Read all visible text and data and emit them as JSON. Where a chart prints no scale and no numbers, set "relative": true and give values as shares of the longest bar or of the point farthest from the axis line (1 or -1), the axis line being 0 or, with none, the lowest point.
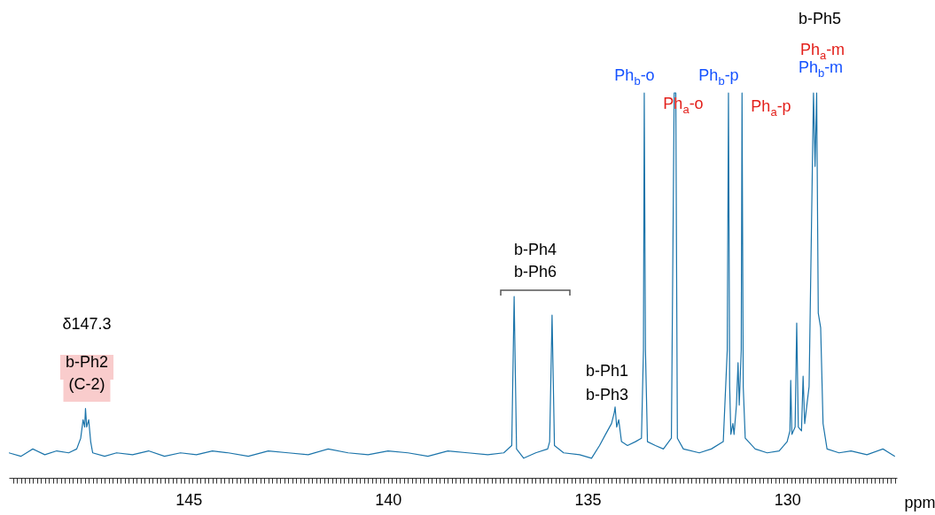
{
  "chart_data": {
    "type": "line",
    "relative": true,
    "xlabel": "ppm",
    "color": "#1b74aa",
    "xlim": [
      149.5,
      127.25
    ],
    "x": [
      149.5,
      149.2,
      148.9,
      148.6,
      148.3,
      148.0,
      147.8,
      147.7,
      147.64,
      147.6,
      147.58,
      147.55,
      147.5,
      147.45,
      147.4,
      147.1,
      146.8,
      146.4,
      146.0,
      145.6,
      145.2,
      144.8,
      144.4,
      144.0,
      143.5,
      143.0,
      142.5,
      142.0,
      141.5,
      141.0,
      140.5,
      140.0,
      139.5,
      139.0,
      138.5,
      138.0,
      137.5,
      137.1,
      136.9,
      136.84,
      136.78,
      136.6,
      136.3,
      136.0,
      135.95,
      135.89,
      135.83,
      135.6,
      135.2,
      134.9,
      134.7,
      134.55,
      134.4,
      134.33,
      134.31,
      134.27,
      134.22,
      134.15,
      134.0,
      133.8,
      133.65,
      133.6,
      133.58,
      133.55,
      133.5,
      133.3,
      133.1,
      132.9,
      132.83,
      132.79,
      132.75,
      132.6,
      132.2,
      131.9,
      131.6,
      131.5,
      131.47,
      131.44,
      131.41,
      131.36,
      131.33,
      131.27,
      131.23,
      131.2,
      131.15,
      131.13,
      131.1,
      131.05,
      130.8,
      130.5,
      130.2,
      130.0,
      129.93,
      129.91,
      129.88,
      129.8,
      129.76,
      129.72,
      129.64,
      129.6,
      129.56,
      129.45,
      129.34,
      129.3,
      129.26,
      129.22,
      129.16,
      129.1,
      129.0,
      128.7,
      128.4,
      128.0,
      127.6,
      127.3
    ],
    "values": [
      0.065,
      0.056,
      0.075,
      0.06,
      0.07,
      0.065,
      0.075,
      0.103,
      0.151,
      0.132,
      0.18,
      0.132,
      0.151,
      0.094,
      0.065,
      0.056,
      0.065,
      0.06,
      0.07,
      0.056,
      0.065,
      0.06,
      0.07,
      0.065,
      0.056,
      0.07,
      0.065,
      0.06,
      0.075,
      0.065,
      0.06,
      0.07,
      0.065,
      0.056,
      0.07,
      0.065,
      0.06,
      0.065,
      0.084,
      0.471,
      0.075,
      0.051,
      0.065,
      0.075,
      0.094,
      0.423,
      0.084,
      0.065,
      0.06,
      0.051,
      0.084,
      0.113,
      0.141,
      0.17,
      0.184,
      0.132,
      0.151,
      0.094,
      0.084,
      0.094,
      0.103,
      0.332,
      1,
      0.332,
      0.094,
      0.084,
      0.075,
      0.103,
      1,
      1,
      0.103,
      0.075,
      0.065,
      0.075,
      0.094,
      0.332,
      1,
      0.237,
      0.113,
      0.141,
      0.113,
      0.189,
      0.299,
      0.189,
      0.332,
      1,
      0.237,
      0.103,
      0.075,
      0.065,
      0.07,
      0.094,
      0.122,
      0.253,
      0.113,
      0.132,
      0.402,
      0.132,
      0.122,
      0.264,
      0.141,
      0.237,
      1,
      0.809,
      1,
      0.428,
      0.39,
      0.141,
      0.075,
      0.065,
      0.07,
      0.06,
      0.075,
      0.056
    ],
    "xticks": [
      {
        "value": 149.4,
        "label": null
      },
      {
        "value": 149.3,
        "label": null
      },
      {
        "value": 149.2,
        "label": null
      },
      {
        "value": 149.1,
        "label": null
      },
      {
        "value": 149.0,
        "label": null
      },
      {
        "value": 148.9,
        "label": null
      },
      {
        "value": 148.8,
        "label": null
      },
      {
        "value": 148.7,
        "label": null
      },
      {
        "value": 148.6,
        "label": null
      },
      {
        "value": 148.5,
        "label": null
      },
      {
        "value": 148.4,
        "label": null
      },
      {
        "value": 148.3,
        "label": null
      },
      {
        "value": 148.2,
        "label": null
      },
      {
        "value": 148.1,
        "label": null
      },
      {
        "value": 148.0,
        "label": null
      },
      {
        "value": 147.9,
        "label": null
      },
      {
        "value": 147.8,
        "label": null
      },
      {
        "value": 147.7,
        "label": null
      },
      {
        "value": 147.6,
        "label": null
      },
      {
        "value": 147.5,
        "label": null
      },
      {
        "value": 147.4,
        "label": null
      },
      {
        "value": 147.3,
        "label": null
      },
      {
        "value": 147.2,
        "label": null
      },
      {
        "value": 147.1,
        "label": null
      },
      {
        "value": 147.0,
        "label": null
      },
      {
        "value": 146.9,
        "label": null
      },
      {
        "value": 146.8,
        "label": null
      },
      {
        "value": 146.7,
        "label": null
      },
      {
        "value": 146.6,
        "label": null
      },
      {
        "value": 146.5,
        "label": null
      },
      {
        "value": 146.4,
        "label": null
      },
      {
        "value": 146.3,
        "label": null
      },
      {
        "value": 146.2,
        "label": null
      },
      {
        "value": 146.1,
        "label": null
      },
      {
        "value": 146.0,
        "label": null
      },
      {
        "value": 145.9,
        "label": null
      },
      {
        "value": 145.8,
        "label": null
      },
      {
        "value": 145.7,
        "label": null
      },
      {
        "value": 145.6,
        "label": null
      },
      {
        "value": 145.5,
        "label": null
      },
      {
        "value": 145.4,
        "label": null
      },
      {
        "value": 145.3,
        "label": null
      },
      {
        "value": 145.2,
        "label": null
      },
      {
        "value": 145.1,
        "label": null
      },
      145,
      {
        "value": 144.9,
        "label": null
      },
      {
        "value": 144.8,
        "label": null
      },
      {
        "value": 144.7,
        "label": null
      },
      {
        "value": 144.6,
        "label": null
      },
      {
        "value": 144.5,
        "label": null
      },
      {
        "value": 144.4,
        "label": null
      },
      {
        "value": 144.3,
        "label": null
      },
      {
        "value": 144.2,
        "label": null
      },
      {
        "value": 144.1,
        "label": null
      },
      {
        "value": 144.0,
        "label": null
      },
      {
        "value": 143.9,
        "label": null
      },
      {
        "value": 143.8,
        "label": null
      },
      {
        "value": 143.7,
        "label": null
      },
      {
        "value": 143.6,
        "label": null
      },
      {
        "value": 143.5,
        "label": null
      },
      {
        "value": 143.4,
        "label": null
      },
      {
        "value": 143.3,
        "label": null
      },
      {
        "value": 143.2,
        "label": null
      },
      {
        "value": 143.1,
        "label": null
      },
      {
        "value": 143.0,
        "label": null
      },
      {
        "value": 142.9,
        "label": null
      },
      {
        "value": 142.8,
        "label": null
      },
      {
        "value": 142.7,
        "label": null
      },
      {
        "value": 142.6,
        "label": null
      },
      {
        "value": 142.5,
        "label": null
      },
      {
        "value": 142.4,
        "label": null
      },
      {
        "value": 142.3,
        "label": null
      },
      {
        "value": 142.2,
        "label": null
      },
      {
        "value": 142.1,
        "label": null
      },
      {
        "value": 142.0,
        "label": null
      },
      {
        "value": 141.9,
        "label": null
      },
      {
        "value": 141.8,
        "label": null
      },
      {
        "value": 141.7,
        "label": null
      },
      {
        "value": 141.6,
        "label": null
      },
      {
        "value": 141.5,
        "label": null
      },
      {
        "value": 141.4,
        "label": null
      },
      {
        "value": 141.3,
        "label": null
      },
      {
        "value": 141.2,
        "label": null
      },
      {
        "value": 141.1,
        "label": null
      },
      {
        "value": 141.0,
        "label": null
      },
      {
        "value": 140.9,
        "label": null
      },
      {
        "value": 140.8,
        "label": null
      },
      {
        "value": 140.7,
        "label": null
      },
      {
        "value": 140.6,
        "label": null
      },
      {
        "value": 140.5,
        "label": null
      },
      {
        "value": 140.4,
        "label": null
      },
      {
        "value": 140.3,
        "label": null
      },
      {
        "value": 140.2,
        "label": null
      },
      {
        "value": 140.1,
        "label": null
      },
      140,
      {
        "value": 139.9,
        "label": null
      },
      {
        "value": 139.8,
        "label": null
      },
      {
        "value": 139.7,
        "label": null
      },
      {
        "value": 139.6,
        "label": null
      },
      {
        "value": 139.5,
        "label": null
      },
      {
        "value": 139.4,
        "label": null
      },
      {
        "value": 139.3,
        "label": null
      },
      {
        "value": 139.2,
        "label": null
      },
      {
        "value": 139.1,
        "label": null
      },
      {
        "value": 139.0,
        "label": null
      },
      {
        "value": 138.9,
        "label": null
      },
      {
        "value": 138.8,
        "label": null
      },
      {
        "value": 138.7,
        "label": null
      },
      {
        "value": 138.6,
        "label": null
      },
      {
        "value": 138.5,
        "label": null
      },
      {
        "value": 138.4,
        "label": null
      },
      {
        "value": 138.3,
        "label": null
      },
      {
        "value": 138.2,
        "label": null
      },
      {
        "value": 138.1,
        "label": null
      },
      {
        "value": 138.0,
        "label": null
      },
      {
        "value": 137.9,
        "label": null
      },
      {
        "value": 137.8,
        "label": null
      },
      {
        "value": 137.7,
        "label": null
      },
      {
        "value": 137.6,
        "label": null
      },
      {
        "value": 137.5,
        "label": null
      },
      {
        "value": 137.4,
        "label": null
      },
      {
        "value": 137.3,
        "label": null
      },
      {
        "value": 137.2,
        "label": null
      },
      {
        "value": 137.1,
        "label": null
      },
      {
        "value": 137.0,
        "label": null
      },
      {
        "value": 136.9,
        "label": null
      },
      {
        "value": 136.8,
        "label": null
      },
      {
        "value": 136.7,
        "label": null
      },
      {
        "value": 136.6,
        "label": null
      },
      {
        "value": 136.5,
        "label": null
      },
      {
        "value": 136.4,
        "label": null
      },
      {
        "value": 136.3,
        "label": null
      },
      {
        "value": 136.2,
        "label": null
      },
      {
        "value": 136.1,
        "label": null
      },
      {
        "value": 136.0,
        "label": null
      },
      {
        "value": 135.9,
        "label": null
      },
      {
        "value": 135.8,
        "label": null
      },
      {
        "value": 135.7,
        "label": null
      },
      {
        "value": 135.6,
        "label": null
      },
      {
        "value": 135.5,
        "label": null
      },
      {
        "value": 135.4,
        "label": null
      },
      {
        "value": 135.3,
        "label": null
      },
      {
        "value": 135.2,
        "label": null
      },
      {
        "value": 135.1,
        "label": null
      },
      135,
      {
        "value": 134.9,
        "label": null
      },
      {
        "value": 134.8,
        "label": null
      },
      {
        "value": 134.7,
        "label": null
      },
      {
        "value": 134.6,
        "label": null
      },
      {
        "value": 134.5,
        "label": null
      },
      {
        "value": 134.4,
        "label": null
      },
      {
        "value": 134.3,
        "label": null
      },
      {
        "value": 134.2,
        "label": null
      },
      {
        "value": 134.1,
        "label": null
      },
      {
        "value": 134.0,
        "label": null
      },
      {
        "value": 133.9,
        "label": null
      },
      {
        "value": 133.8,
        "label": null
      },
      {
        "value": 133.7,
        "label": null
      },
      {
        "value": 133.6,
        "label": null
      },
      {
        "value": 133.5,
        "label": null
      },
      {
        "value": 133.4,
        "label": null
      },
      {
        "value": 133.3,
        "label": null
      },
      {
        "value": 133.2,
        "label": null
      },
      {
        "value": 133.1,
        "label": null
      },
      {
        "value": 133.0,
        "label": null
      },
      {
        "value": 132.9,
        "label": null
      },
      {
        "value": 132.8,
        "label": null
      },
      {
        "value": 132.7,
        "label": null
      },
      {
        "value": 132.6,
        "label": null
      },
      {
        "value": 132.5,
        "label": null
      },
      {
        "value": 132.4,
        "label": null
      },
      {
        "value": 132.3,
        "label": null
      },
      {
        "value": 132.2,
        "label": null
      },
      {
        "value": 132.1,
        "label": null
      },
      {
        "value": 132.0,
        "label": null
      },
      {
        "value": 131.9,
        "label": null
      },
      {
        "value": 131.8,
        "label": null
      },
      {
        "value": 131.7,
        "label": null
      },
      {
        "value": 131.6,
        "label": null
      },
      {
        "value": 131.5,
        "label": null
      },
      {
        "value": 131.4,
        "label": null
      },
      {
        "value": 131.3,
        "label": null
      },
      {
        "value": 131.2,
        "label": null
      },
      {
        "value": 131.1,
        "label": null
      },
      {
        "value": 131.0,
        "label": null
      },
      {
        "value": 130.9,
        "label": null
      },
      {
        "value": 130.8,
        "label": null
      },
      {
        "value": 130.7,
        "label": null
      },
      {
        "value": 130.6,
        "label": null
      },
      {
        "value": 130.5,
        "label": null
      },
      {
        "value": 130.4,
        "label": null
      },
      {
        "value": 130.3,
        "label": null
      },
      {
        "value": 130.2,
        "label": null
      },
      {
        "value": 130.1,
        "label": null
      },
      130,
      {
        "value": 129.9,
        "label": null
      },
      {
        "value": 129.8,
        "label": null
      },
      {
        "value": 129.7,
        "label": null
      },
      {
        "value": 129.6,
        "label": null
      },
      {
        "value": 129.5,
        "label": null
      },
      {
        "value": 129.4,
        "label": null
      },
      {
        "value": 129.3,
        "label": null
      },
      {
        "value": 129.2,
        "label": null
      },
      {
        "value": 129.1,
        "label": null
      },
      {
        "value": 129.0,
        "label": null
      },
      {
        "value": 128.9,
        "label": null
      },
      {
        "value": 128.8,
        "label": null
      },
      {
        "value": 128.7,
        "label": null
      },
      {
        "value": 128.6,
        "label": null
      },
      {
        "value": 128.5,
        "label": null
      },
      {
        "value": 128.4,
        "label": null
      },
      {
        "value": 128.3,
        "label": null
      },
      {
        "value": 128.2,
        "label": null
      },
      {
        "value": 128.1,
        "label": null
      },
      {
        "value": 128.0,
        "label": null
      },
      {
        "value": 127.9,
        "label": null
      },
      {
        "value": 127.8,
        "label": null
      },
      {
        "value": 127.7,
        "label": null
      },
      {
        "value": 127.6,
        "label": null
      },
      {
        "value": 127.5,
        "label": null
      },
      {
        "value": 127.4,
        "label": null
      },
      {
        "value": 127.3,
        "label": null
      }
    ],
    "annotations": [
      "δ147.3",
      "b-Ph2",
      "(C-2)",
      "b-Ph4",
      "b-Ph6",
      "b-Ph1",
      "b-Ph3",
      "Ph$_{b}$-o",
      "Ph$_{a}$-o",
      "Ph$_{b}$-p",
      "Ph$_{a}$-p",
      "b-Ph5",
      "Ph$_{a}$-m",
      "Ph$_{b}$-m"
    ]
  }
}
